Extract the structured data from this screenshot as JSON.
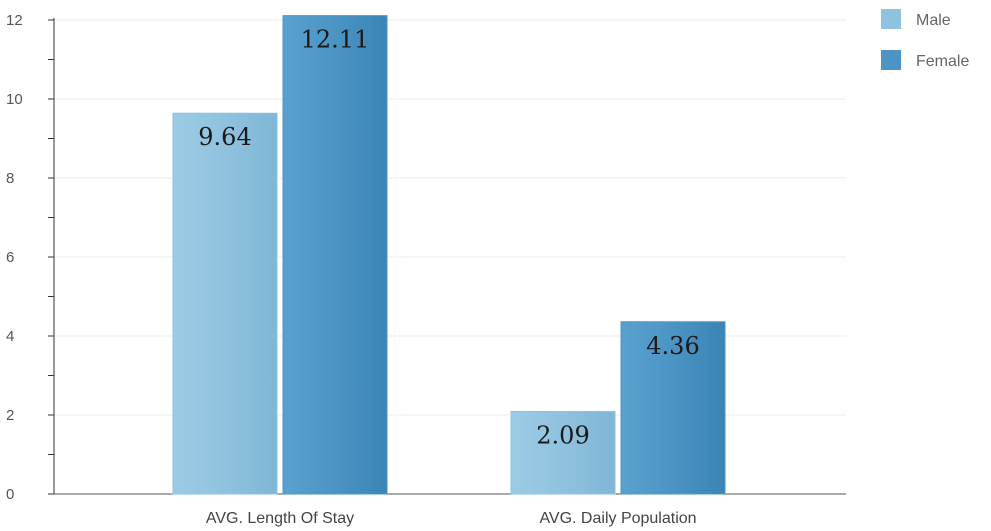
{
  "chart_data": {
    "type": "bar",
    "categories": [
      "AVG. Length Of Stay",
      "AVG. Daily Population"
    ],
    "series": [
      {
        "name": "Male",
        "values": [
          9.64,
          2.09
        ],
        "labels": [
          "9.64",
          "2.09"
        ],
        "color": "#8fc2df"
      },
      {
        "name": "Female",
        "values": [
          12.11,
          4.36
        ],
        "labels": [
          "12.11",
          "4.36"
        ],
        "color": "#4b94c4"
      }
    ],
    "ylim": [
      0,
      12
    ],
    "yticks": [
      "0",
      "2",
      "4",
      "6",
      "8",
      "10",
      "12"
    ],
    "grid": true,
    "legend_position": "top-right"
  }
}
